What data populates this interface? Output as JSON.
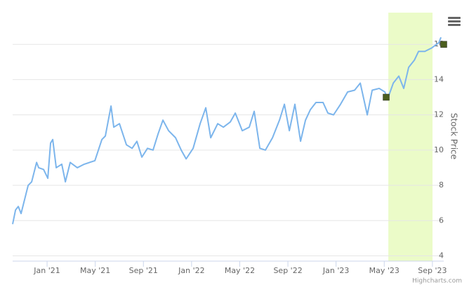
{
  "chart_data": {
    "type": "line",
    "y_axis_title": "Stock Price",
    "credits": "Highcharts.com",
    "x": [
      -2.86,
      -2.62,
      -2.39,
      -2.16,
      -1.57,
      -1.28,
      -0.87,
      -0.7,
      -0.29,
      0.06,
      0.29,
      0.47,
      0.76,
      1.22,
      1.52,
      1.92,
      2.51,
      3.09,
      3.97,
      4.55,
      4.84,
      5.31,
      5.54,
      6.01,
      6.59,
      7.06,
      7.46,
      7.87,
      8.34,
      8.8,
      9.21,
      9.62,
      10.09,
      10.67,
      11.14,
      11.55,
      12.13,
      12.71,
      13.18,
      13.59,
      14.17,
      14.64,
      15.22,
      15.63,
      16.21,
      16.79,
      17.2,
      17.67,
      18.13,
      18.72,
      19.3,
      19.71,
      20.12,
      20.58,
      21.05,
      21.46,
      21.87,
      22.33,
      22.92,
      23.32,
      23.79,
      24.37,
      24.96,
      25.54,
      26.01,
      26.3,
      26.59,
      27.0,
      27.58,
      28.05,
      28.28,
      28.75,
      29.21,
      29.62,
      30.03,
      30.5,
      30.85,
      31.37,
      31.95,
      32.54,
      32.71
    ],
    "series": [
      {
        "color": "#7cb5ec",
        "values": [
          5.8,
          6.6,
          6.8,
          6.4,
          8.0,
          8.2,
          9.3,
          9.0,
          8.9,
          8.4,
          10.4,
          10.6,
          9.0,
          9.2,
          8.2,
          9.3,
          9.0,
          9.2,
          9.4,
          10.6,
          10.8,
          12.5,
          11.3,
          11.5,
          10.3,
          10.1,
          10.5,
          9.6,
          10.1,
          10.0,
          10.9,
          11.7,
          11.1,
          10.7,
          10.0,
          9.5,
          10.1,
          11.5,
          12.4,
          10.7,
          11.5,
          11.3,
          11.6,
          12.1,
          11.1,
          11.3,
          12.2,
          10.1,
          10.0,
          10.7,
          11.7,
          12.6,
          11.1,
          12.6,
          10.5,
          11.7,
          12.3,
          12.7,
          12.7,
          12.1,
          12.0,
          12.6,
          13.3,
          13.4,
          13.8,
          12.9,
          12.0,
          13.4,
          13.5,
          13.3,
          12.9,
          13.8,
          14.2,
          13.5,
          14.7,
          15.1,
          15.6,
          15.6,
          15.8,
          16.1,
          16.4
        ]
      }
    ],
    "markers": {
      "color": "#4b5e1e",
      "x": [
        28.16,
        32.94
      ],
      "values": [
        13.0,
        16.0
      ]
    },
    "plot_band": {
      "from": 28.34,
      "to": 32.01,
      "color": "#ebfbc8"
    },
    "xlim": [
      -2.86,
      32.94
    ],
    "ylim": [
      3.7,
      17.8
    ],
    "xticks": [
      {
        "value": 0,
        "label": "Jan '21"
      },
      {
        "value": 4,
        "label": "May '21"
      },
      {
        "value": 8,
        "label": "Sep '21"
      },
      {
        "value": 12,
        "label": "Jan '22"
      },
      {
        "value": 16,
        "label": "May '22"
      },
      {
        "value": 20,
        "label": "Sep '22"
      },
      {
        "value": 24,
        "label": "Jan '23"
      },
      {
        "value": 28,
        "label": "May '23"
      },
      {
        "value": 32,
        "label": "Sep '23"
      }
    ],
    "yticks": [
      4,
      6,
      8,
      10,
      12,
      14,
      16
    ],
    "grid": true
  }
}
